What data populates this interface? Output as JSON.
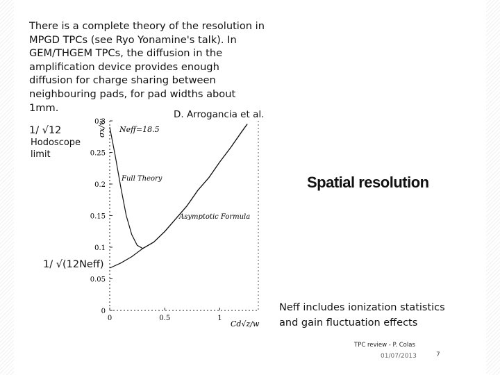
{
  "body_text": "There is a complete theory of the resolution in MPGD TPCs (see Ryo Yonamine's talk). In GEM/THGEM TPCs, the diffusion in the amplification device provides enough diffusion for charge sharing between neighbouring pads, for pad widths about 1mm.",
  "reference": "D. Arrogancia et al.",
  "labels": {
    "inv_sqrt12": "1/ √12",
    "hodoscope": "Hodoscope limit",
    "inv_sqrt12neff": "1/ √(12Neff)"
  },
  "slide_title": "Spatial resolution",
  "note": "Neff includes ionization statistics and gain fluctuation effects",
  "footer": {
    "text": "TPC review - P. Colas",
    "date": "01/07/2013",
    "page": "7"
  },
  "chart_data": {
    "type": "line",
    "xlabel": "Cd√z/w",
    "ylabel": "σx/w",
    "xlim": [
      0,
      1.35
    ],
    "ylim": [
      0,
      0.3
    ],
    "x_ticks": [
      "0",
      "0.5",
      "1"
    ],
    "y_ticks": [
      "0",
      "0.05",
      "0.1",
      "0.15",
      "0.2",
      "0.25",
      "0.3"
    ],
    "annotation": "Neff=18.5",
    "series": [
      {
        "name": "Full Theory",
        "points": [
          [
            0.0,
            0.29
          ],
          [
            0.05,
            0.245
          ],
          [
            0.1,
            0.195
          ],
          [
            0.15,
            0.15
          ],
          [
            0.2,
            0.12
          ],
          [
            0.25,
            0.103
          ],
          [
            0.3,
            0.098
          ],
          [
            0.4,
            0.108
          ],
          [
            0.5,
            0.125
          ],
          [
            0.6,
            0.145
          ],
          [
            0.7,
            0.165
          ],
          [
            0.8,
            0.19
          ],
          [
            0.9,
            0.21
          ],
          [
            1.0,
            0.235
          ],
          [
            1.1,
            0.258
          ],
          [
            1.2,
            0.283
          ],
          [
            1.25,
            0.295
          ]
        ]
      },
      {
        "name": "Asymptotic Formula",
        "points": [
          [
            0.0,
            0.067
          ],
          [
            0.1,
            0.075
          ],
          [
            0.2,
            0.085
          ],
          [
            0.3,
            0.098
          ],
          [
            0.4,
            0.108
          ],
          [
            0.5,
            0.125
          ],
          [
            0.6,
            0.145
          ],
          [
            0.7,
            0.165
          ],
          [
            0.8,
            0.19
          ],
          [
            0.9,
            0.21
          ],
          [
            1.0,
            0.235
          ],
          [
            1.1,
            0.258
          ],
          [
            1.2,
            0.283
          ],
          [
            1.25,
            0.295
          ]
        ]
      }
    ]
  }
}
